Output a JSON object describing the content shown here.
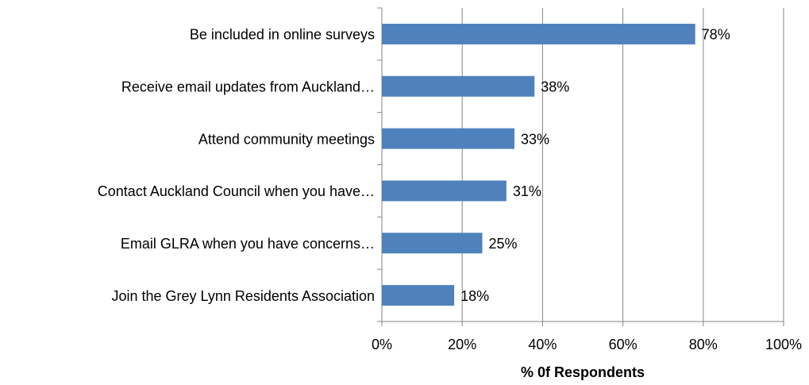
{
  "chart_data": {
    "type": "bar",
    "orientation": "horizontal",
    "x_label": "% 0f Respondents",
    "categories": [
      "Be included in online surveys",
      "Receive email updates from Auckland…",
      "Attend community meetings",
      "Contact Auckland Council when you have…",
      "Email GLRA when you have concerns…",
      "Join the Grey Lynn Residents Association"
    ],
    "values": [
      78,
      38,
      33,
      31,
      25,
      18
    ],
    "value_labels": [
      "78%",
      "38%",
      "33%",
      "31%",
      "25%",
      "18%"
    ],
    "color": "#4f81bd",
    "xlim": [
      0,
      100
    ],
    "xticks": [
      {
        "value": 0,
        "label": "0%"
      },
      {
        "value": 20,
        "label": "20%"
      },
      {
        "value": 40,
        "label": "40%"
      },
      {
        "value": 60,
        "label": "60%"
      },
      {
        "value": 80,
        "label": "80%"
      },
      {
        "value": 100,
        "label": "100%"
      }
    ],
    "grid": true
  }
}
